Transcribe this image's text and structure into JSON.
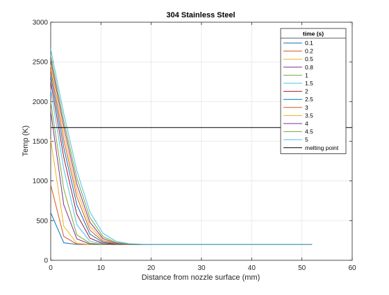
{
  "chart_data": {
    "type": "line",
    "title": "304 Stainless Steel",
    "xlabel": "Distance from nozzle surface (mm)",
    "ylabel": "Temp (K)",
    "xlim": [
      0,
      60
    ],
    "ylim": [
      0,
      3000
    ],
    "xticks": [
      "0",
      "10",
      "20",
      "30",
      "40",
      "50",
      "60"
    ],
    "yticks": [
      "0",
      "500",
      "1000",
      "1500",
      "2000",
      "2500",
      "3000"
    ],
    "grid": true,
    "legend": {
      "title": "time (s)",
      "placement": "top-right"
    },
    "x": [
      0,
      2.6,
      5.2,
      7.8,
      10.4,
      13,
      15.6,
      18.2,
      20.8,
      23.4,
      26,
      28.6,
      31.2,
      33.8,
      36.4,
      39,
      41.6,
      44.2,
      46.8,
      49.4,
      52
    ],
    "series": [
      {
        "name": "0.1",
        "color": "#0072BD",
        "values": [
          600,
          220,
          200,
          200,
          200,
          200,
          200,
          200,
          200,
          200,
          200,
          200,
          200,
          200,
          200,
          200,
          200,
          200,
          200,
          200,
          200
        ]
      },
      {
        "name": "0.2",
        "color": "#D95319",
        "values": [
          950,
          300,
          205,
          200,
          200,
          200,
          200,
          200,
          200,
          200,
          200,
          200,
          200,
          200,
          200,
          200,
          200,
          200,
          200,
          200,
          200
        ]
      },
      {
        "name": "0.5",
        "color": "#EDB120",
        "values": [
          1520,
          430,
          215,
          200,
          200,
          200,
          200,
          200,
          200,
          200,
          200,
          200,
          200,
          200,
          200,
          200,
          200,
          200,
          200,
          200,
          200
        ]
      },
      {
        "name": "0.8",
        "color": "#7E2F8E",
        "values": [
          1880,
          700,
          270,
          205,
          200,
          200,
          200,
          200,
          200,
          200,
          200,
          200,
          200,
          200,
          200,
          200,
          200,
          200,
          200,
          200,
          200
        ]
      },
      {
        "name": "1",
        "color": "#77AC30",
        "values": [
          2000,
          900,
          320,
          215,
          200,
          200,
          200,
          200,
          200,
          200,
          200,
          200,
          200,
          200,
          200,
          200,
          200,
          200,
          200,
          200,
          200
        ]
      },
      {
        "name": "1.5",
        "color": "#4DBEEE",
        "values": [
          2150,
          1150,
          450,
          240,
          205,
          200,
          200,
          200,
          200,
          200,
          200,
          200,
          200,
          200,
          200,
          200,
          200,
          200,
          200,
          200,
          200
        ]
      },
      {
        "name": "2",
        "color": "#A2142F",
        "values": [
          2250,
          1300,
          580,
          280,
          210,
          200,
          200,
          200,
          200,
          200,
          200,
          200,
          200,
          200,
          200,
          200,
          200,
          200,
          200,
          200,
          200
        ]
      },
      {
        "name": "2.5",
        "color": "#0072BD",
        "values": [
          2330,
          1420,
          700,
          330,
          225,
          203,
          200,
          200,
          200,
          200,
          200,
          200,
          200,
          200,
          200,
          200,
          200,
          200,
          200,
          200,
          200
        ]
      },
      {
        "name": "3",
        "color": "#D95319",
        "values": [
          2400,
          1520,
          800,
          380,
          240,
          207,
          200,
          200,
          200,
          200,
          200,
          200,
          200,
          200,
          200,
          200,
          200,
          200,
          200,
          200,
          200
        ]
      },
      {
        "name": "3.5",
        "color": "#EDB120",
        "values": [
          2460,
          1610,
          880,
          430,
          255,
          210,
          201,
          200,
          200,
          200,
          200,
          200,
          200,
          200,
          200,
          200,
          200,
          200,
          200,
          200,
          200
        ]
      },
      {
        "name": "4",
        "color": "#7E2F8E",
        "values": [
          2520,
          1690,
          960,
          480,
          275,
          215,
          203,
          200,
          200,
          200,
          200,
          200,
          200,
          200,
          200,
          200,
          200,
          200,
          200,
          200,
          200
        ]
      },
      {
        "name": "4.5",
        "color": "#77AC30",
        "values": [
          2580,
          1760,
          1040,
          540,
          300,
          225,
          205,
          201,
          200,
          200,
          200,
          200,
          200,
          200,
          200,
          200,
          200,
          200,
          200,
          200,
          200
        ]
      },
      {
        "name": "5",
        "color": "#4DBEEE",
        "values": [
          2660,
          1850,
          1130,
          610,
          340,
          240,
          210,
          202,
          200,
          200,
          200,
          200,
          200,
          200,
          200,
          200,
          200,
          200,
          200,
          200,
          200
        ]
      }
    ],
    "reference_line": {
      "name": "melting point",
      "color": "#000000",
      "y": 1673
    }
  }
}
